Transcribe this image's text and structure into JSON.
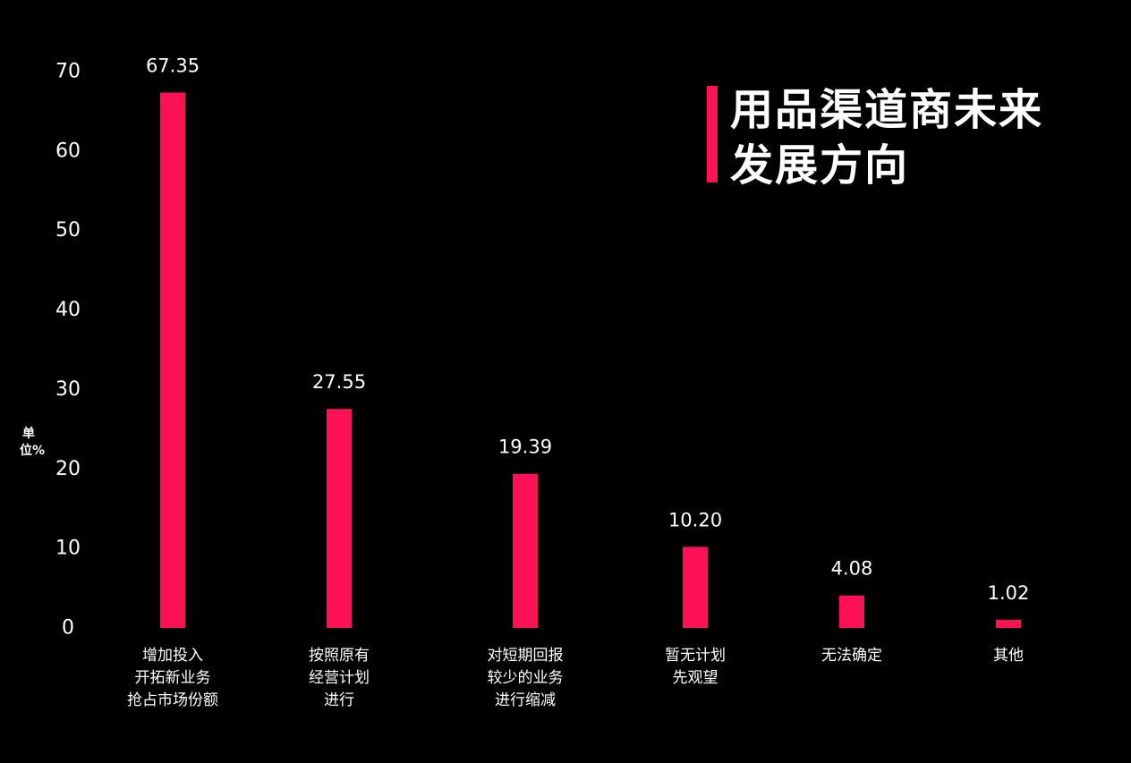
{
  "colors": {
    "background": "#000000",
    "bar": "#ff1155",
    "accent": "#ff1155",
    "text": "#ffffff"
  },
  "title": "用品渠道商未来发展方向",
  "unit_label": "单位%",
  "chart_data": {
    "type": "bar",
    "title": "用品渠道商未来发展方向",
    "ylabel": "单位%",
    "xlabel": "",
    "ylim": [
      0,
      70
    ],
    "yticks": [
      0,
      10,
      20,
      30,
      40,
      50,
      60,
      70
    ],
    "grid": false,
    "categories": [
      [
        "增加投入",
        "开拓新业务",
        "抢占市场份额"
      ],
      [
        "按照原有",
        "经营计划",
        "进行"
      ],
      [
        "对短期回报",
        "较少的业务",
        "进行缩减"
      ],
      [
        "暂无计划",
        "先观望"
      ],
      [
        "无法确定"
      ],
      [
        "其他"
      ]
    ],
    "values": [
      67.35,
      27.55,
      19.39,
      10.2,
      4.08,
      1.02
    ],
    "data_labels": [
      "67.35",
      "27.55",
      "19.39",
      "10.20",
      "4.08",
      "1.02"
    ]
  }
}
